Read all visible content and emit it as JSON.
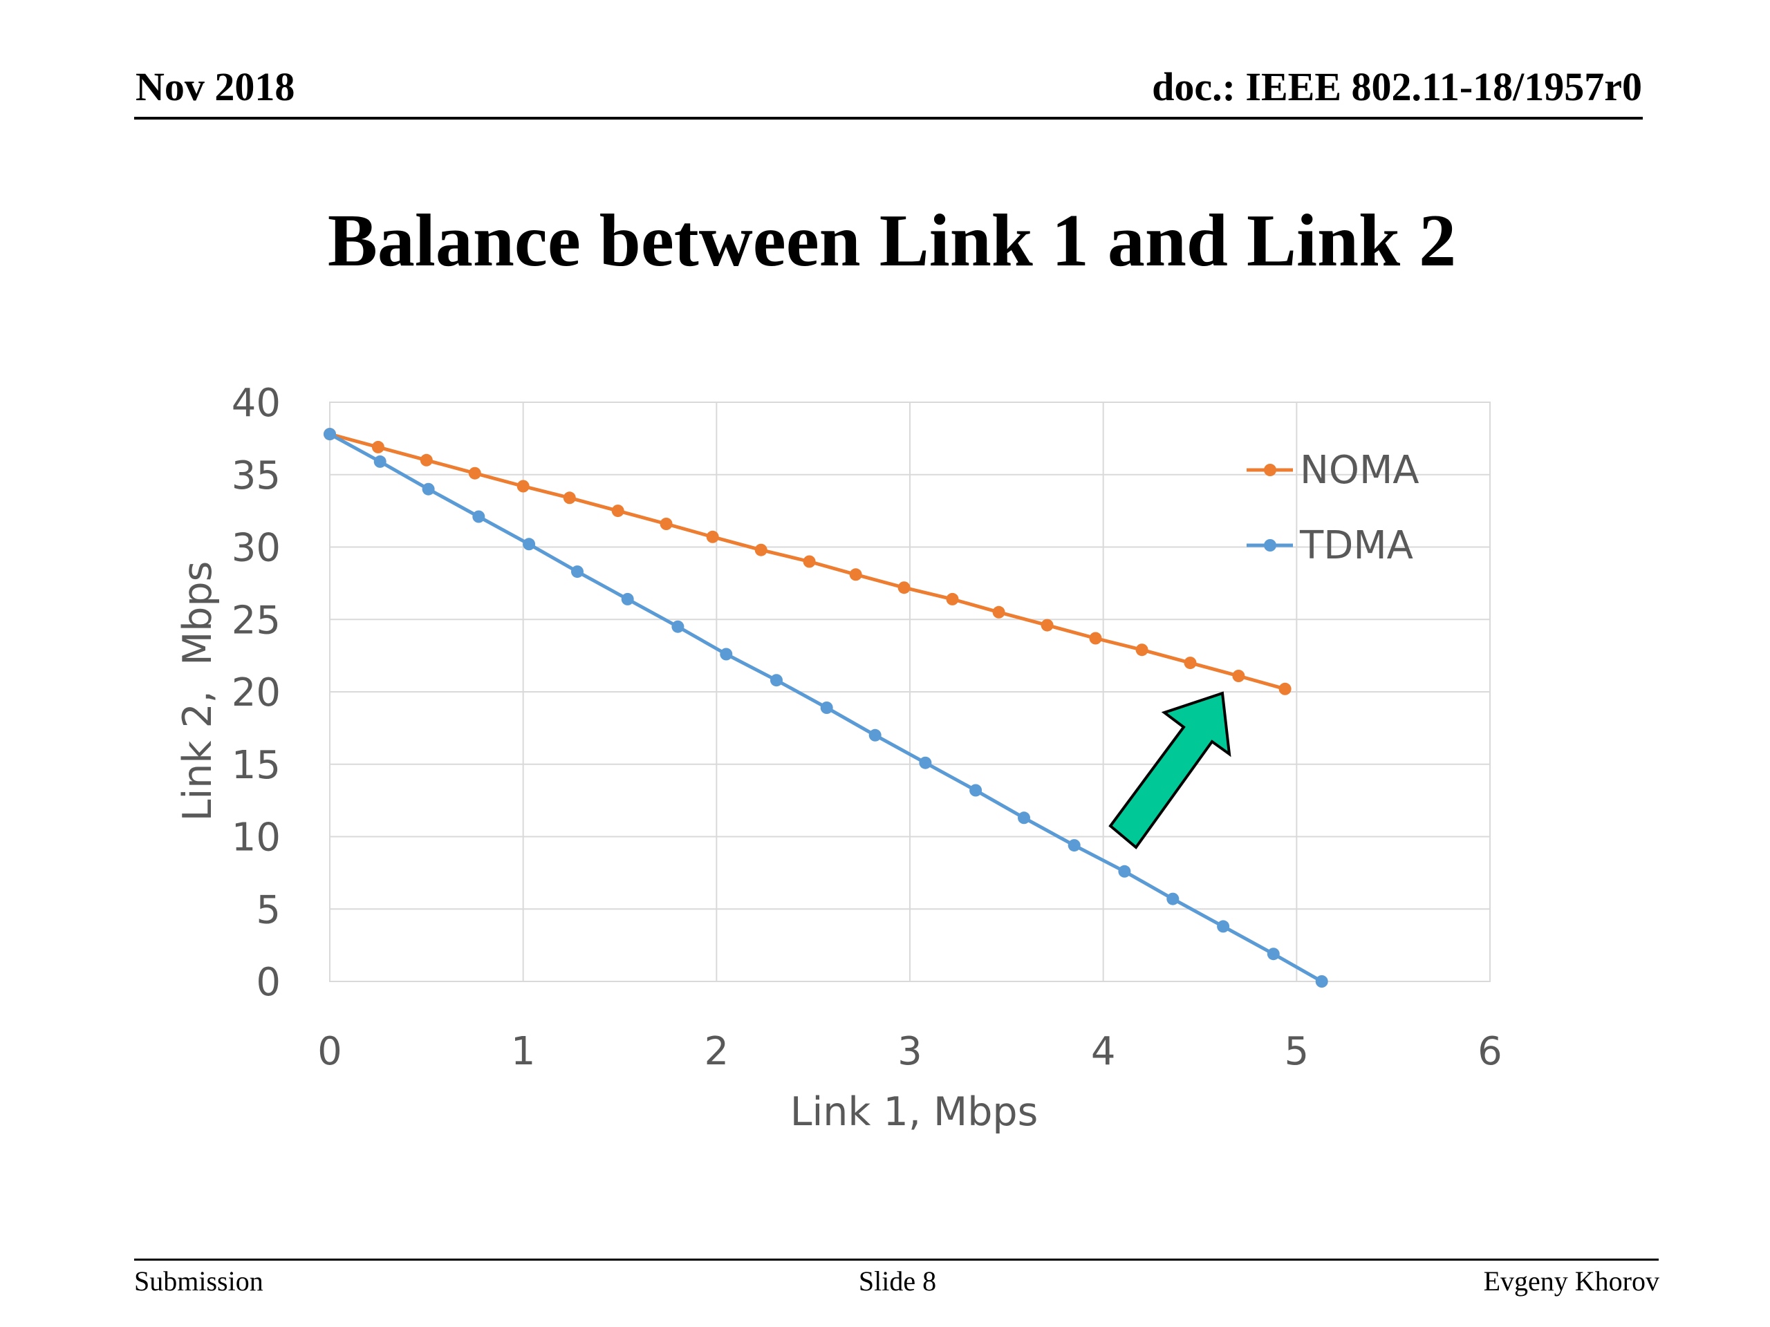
{
  "header": {
    "date": "Nov 2018",
    "doc_id": "doc.: IEEE 802.11-18/1957r0"
  },
  "slide": {
    "title": "Balance between Link 1 and Link 2"
  },
  "footer": {
    "left": "Submission",
    "center": "Slide 8",
    "right": "Evgeny Khorov"
  },
  "colors": {
    "noma": "#ED7D31",
    "tdma": "#5B9BD5",
    "arrow_fill": "#00C896",
    "gridline": "#D9D9D9",
    "axis_text": "#595959"
  },
  "annotations": {
    "arrow": "upward-right arrow from TDMA curve toward NOMA curve"
  },
  "chart_data": {
    "type": "line",
    "title": "",
    "xlabel": "Link 1, Mbps",
    "ylabel": "Link 2,  Mbps",
    "xlim": [
      0,
      6
    ],
    "ylim": [
      0,
      40
    ],
    "xticks": [
      "0",
      "1",
      "2",
      "3",
      "4",
      "5",
      "6"
    ],
    "yticks": [
      "0",
      "5",
      "10",
      "15",
      "20",
      "25",
      "30",
      "35",
      "40"
    ],
    "grid": true,
    "legend_position": "top-right",
    "series": [
      {
        "name": "NOMA",
        "color": "#ED7D31",
        "x": [
          0,
          0.25,
          0.5,
          0.75,
          1.0,
          1.24,
          1.49,
          1.74,
          1.98,
          2.23,
          2.48,
          2.72,
          2.97,
          3.22,
          3.46,
          3.71,
          3.96,
          4.2,
          4.45,
          4.7,
          4.94
        ],
        "y": [
          37.8,
          36.9,
          36.0,
          35.1,
          34.2,
          33.4,
          32.5,
          31.6,
          30.7,
          29.8,
          29.0,
          28.1,
          27.2,
          26.4,
          25.5,
          24.6,
          23.7,
          22.9,
          22.0,
          21.1,
          20.2
        ]
      },
      {
        "name": "TDMA",
        "color": "#5B9BD5",
        "x": [
          0,
          0.26,
          0.51,
          0.77,
          1.03,
          1.28,
          1.54,
          1.8,
          2.05,
          2.31,
          2.57,
          2.82,
          3.08,
          3.34,
          3.59,
          3.85,
          4.11,
          4.36,
          4.62,
          4.88,
          5.13
        ],
        "y": [
          37.8,
          35.9,
          34.0,
          32.1,
          30.2,
          28.3,
          26.4,
          24.5,
          22.6,
          20.8,
          18.9,
          17.0,
          15.1,
          13.2,
          11.3,
          9.4,
          7.6,
          5.7,
          3.8,
          1.9,
          0
        ]
      }
    ]
  }
}
